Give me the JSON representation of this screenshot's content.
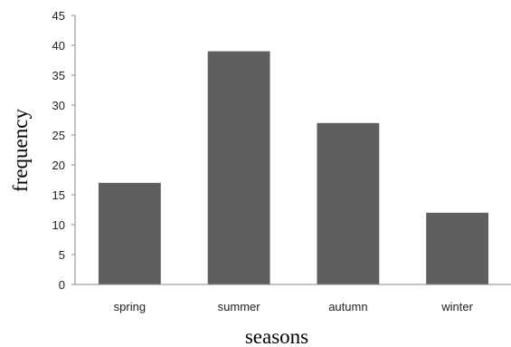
{
  "chart_data": {
    "type": "bar",
    "title": "",
    "xlabel": "seasons",
    "ylabel": "frequency",
    "categories": [
      "spring",
      "summer",
      "autumn",
      "winter"
    ],
    "values": [
      17,
      39,
      27,
      12
    ],
    "ylim": [
      0,
      45
    ],
    "yticks": [
      "0",
      "5",
      "10",
      "15",
      "20",
      "25",
      "30",
      "35",
      "40",
      "45"
    ],
    "grid": false,
    "legend": "none",
    "bar_color": "#5f5f5f"
  }
}
